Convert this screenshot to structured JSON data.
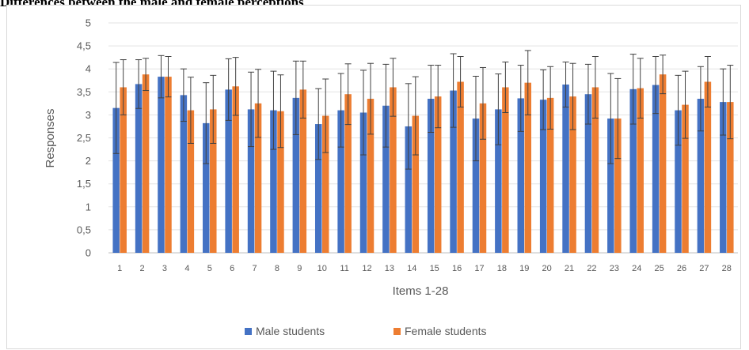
{
  "title": "Differences between the male and female perceptions",
  "chart_data": {
    "type": "bar",
    "title": "Differences between the male and female perceptions",
    "xlabel": "Items 1-28",
    "ylabel": "Responses",
    "ylim": [
      0,
      5
    ],
    "yticks": [
      0,
      0.5,
      1,
      1.5,
      2,
      2.5,
      3,
      3.5,
      4,
      4.5,
      5
    ],
    "ytick_labels": [
      "0",
      "0,5",
      "1",
      "1,5",
      "2",
      "2,5",
      "3",
      "3,5",
      "4",
      "4,5",
      "5"
    ],
    "grid": true,
    "legend": "bottom",
    "error_bars": true,
    "categories": [
      "1",
      "2",
      "3",
      "4",
      "5",
      "6",
      "7",
      "8",
      "9",
      "10",
      "11",
      "12",
      "13",
      "14",
      "15",
      "16",
      "17",
      "18",
      "19",
      "20",
      "21",
      "22",
      "23",
      "24",
      "25",
      "26",
      "27",
      "28"
    ],
    "series": [
      {
        "name": "Male students",
        "color": "#4472c4",
        "values": [
          3.15,
          3.67,
          3.83,
          3.43,
          2.82,
          3.55,
          3.12,
          3.1,
          3.37,
          2.8,
          3.1,
          3.05,
          3.2,
          2.75,
          3.35,
          3.53,
          2.92,
          3.12,
          3.36,
          3.33,
          3.66,
          3.45,
          2.92,
          3.56,
          3.65,
          3.1,
          3.35,
          3.28
        ],
        "errors": [
          0.99,
          0.53,
          0.46,
          0.57,
          0.88,
          0.67,
          0.81,
          0.85,
          0.8,
          0.77,
          0.8,
          0.92,
          0.9,
          0.93,
          0.73,
          0.8,
          0.92,
          0.77,
          0.72,
          0.65,
          0.49,
          0.65,
          0.98,
          0.76,
          0.62,
          0.76,
          0.7,
          0.72
        ]
      },
      {
        "name": "Female students",
        "color": "#ed7d31",
        "values": [
          3.6,
          3.88,
          3.83,
          3.1,
          3.12,
          3.62,
          3.25,
          3.08,
          3.55,
          2.98,
          3.45,
          3.35,
          3.6,
          2.98,
          3.4,
          3.72,
          3.25,
          3.6,
          3.7,
          3.37,
          3.4,
          3.6,
          2.92,
          3.58,
          3.88,
          3.22,
          3.72,
          3.28
        ],
        "errors": [
          0.6,
          0.35,
          0.44,
          0.72,
          0.74,
          0.63,
          0.74,
          0.79,
          0.62,
          0.8,
          0.66,
          0.77,
          0.63,
          0.85,
          0.68,
          0.55,
          0.78,
          0.55,
          0.7,
          0.68,
          0.72,
          0.67,
          0.87,
          0.65,
          0.42,
          0.73,
          0.55,
          0.8
        ]
      }
    ]
  }
}
